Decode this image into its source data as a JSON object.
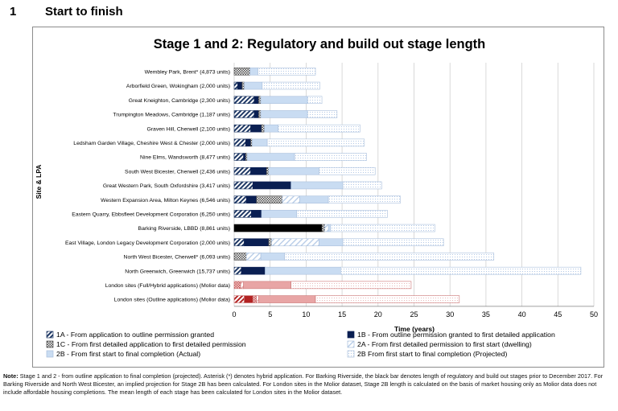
{
  "section": {
    "number": "1",
    "title": "Start to finish"
  },
  "colors": {
    "s1a": "#1f3864",
    "s1b": "#0a1f52",
    "s1c": "#4a4a4a",
    "s2a": "#b8cde8",
    "s2b": "#c9dcf2",
    "s2b_proj": "#d9e6f5",
    "molior_a": "#b22222",
    "molior_b": "#e8a5a5",
    "grid": "#d0d0d0"
  },
  "chart_data": {
    "type": "bar",
    "orientation": "horizontal",
    "stacked": true,
    "title": "Stage 1 and 2: Regulatory and build out stage length",
    "xlabel": "Time (years)",
    "ylabel": "Site & LPA",
    "xlim": [
      0,
      50
    ],
    "xticks": [
      "0",
      "5",
      "10",
      "15",
      "20",
      "25",
      "30",
      "35",
      "40",
      "45",
      "50"
    ],
    "grid": true,
    "categories": [
      "Wembley Park, Brent* (4,873 units)",
      "Arborfield Green, Wokingham (2,000 units)",
      "Great Kneighton, Cambridge (2,300 units)",
      "Trumpington Meadows, Cambridge (1,187 units)",
      "Graven Hill, Cherwell (2,100 units)",
      "Ledsham Garden Village, Cheshire West & Chester (2,000 units)",
      "Nine Elms, Wandsworth (8,477 units)",
      "South West Bicester, Cherwell (2,436 units)",
      "Great Western Park, South Oxfordshire (3,417 units)",
      "Western Expansion Area, Milton Keynes (6,546 units)",
      "Eastern Quarry, Ebbsfleet Development Corporation (6,250 units)",
      "Barking Riverside, LBBD (8,861 units)",
      "East Village, London Legacy Development Corporation (2,000 units)",
      "North West Bicester, Cherwell* (6,093 units)",
      "North Greenwich, Greenwich (15,737 units)",
      "London sites (Full/Hybrid applications) (Molior data)",
      "London sites (Outline applications) (Molior data)"
    ],
    "series": [
      {
        "key": "s1a",
        "name": "1A - From application to outline permission granted",
        "values": [
          0,
          0.5,
          2.8,
          2.8,
          2.3,
          1.6,
          1.3,
          2.3,
          2.6,
          1.7,
          2.4,
          0,
          1.4,
          0,
          1.0,
          0,
          1.4
        ]
      },
      {
        "key": "s1b",
        "name": "1B - From outline permission granted to first detailed application",
        "values": [
          0,
          0.6,
          0.6,
          0.6,
          1.5,
          0.7,
          0.3,
          2.2,
          5.3,
          1.4,
          1.4,
          12.2,
          3.4,
          0,
          3.3,
          0,
          1.2
        ]
      },
      {
        "key": "s1c",
        "name": "1C - From first detailed application to first detailed permission",
        "values": [
          2.2,
          0.3,
          0.3,
          0.3,
          0.4,
          0.2,
          0.2,
          0.3,
          0,
          3.6,
          0,
          0.4,
          0.4,
          1.7,
          0,
          0.9,
          0.5
        ]
      },
      {
        "key": "s2a",
        "name": "2A - From first detailed permission to first start (dwelling)",
        "values": [
          0,
          0,
          0,
          0,
          0,
          0,
          0,
          0,
          0,
          2.4,
          0,
          0.5,
          6.6,
          2.0,
          0,
          0.4,
          0.3
        ]
      },
      {
        "key": "s2b",
        "name": "2B - From first start to final completion (Actual)",
        "values": [
          1.1,
          2.5,
          6.5,
          6.5,
          1.9,
          2.1,
          6.6,
          7.0,
          7.2,
          4.0,
          4.9,
          0.3,
          3.3,
          3.3,
          10.5,
          6.6,
          7.9
        ]
      },
      {
        "key": "s2b_proj",
        "name": "2B From first start to final completion (Projected)",
        "values": [
          8.0,
          8.0,
          2.0,
          4.1,
          11.4,
          13.5,
          10.0,
          7.8,
          5.4,
          10.0,
          12.6,
          14.5,
          14.0,
          29.1,
          33.4,
          16.7,
          20.0
        ]
      }
    ]
  },
  "note": {
    "label": "Note:",
    "text": "Stage 1 and 2 - from outline application to final completion (projected). Asterisk (*) denotes hybrid application. For Barking Riverside, the black bar denotes length of regulatory and build out stages prior to December 2017. For Barking Riverside and North West Bicester, an implied projection for Stage 2B has been calculated. For London sites in the Molior dataset, Stage 2B length is calculated on the basis of market housing only as Molior data does not include affordable housing completions. The mean length of each stage has been calculated for London sites in the Molior dataset."
  }
}
